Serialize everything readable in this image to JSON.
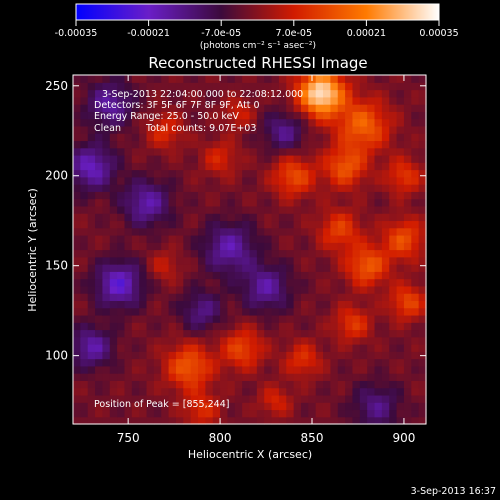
{
  "chart_data": {
    "type": "heatmap",
    "title": "Reconstructed RHESSI Image",
    "xlabel": "Heliocentric X (arcsec)",
    "ylabel": "Heliocentric Y (arcsec)",
    "xlim": [
      720,
      912
    ],
    "ylim": [
      62,
      256
    ],
    "x_ticks": [
      750,
      800,
      850,
      900
    ],
    "y_ticks": [
      100,
      150,
      200,
      250
    ],
    "colorbar": {
      "vmin": -0.00035,
      "vmax": 0.00035,
      "tick_values": [
        -0.00035,
        -0.00021,
        -7e-05,
        7e-05,
        0.00021,
        0.00035
      ],
      "tick_labels": [
        "-0.00035",
        "-0.00021",
        "-7.0e-05",
        "7.0e-05",
        "0.00021",
        "0.00035"
      ],
      "units_label": "(photons cm⁻² s⁻¹ asec⁻²)",
      "colors": [
        "#0000ff",
        "#6a1ec8",
        "#3c0a3c",
        "#d11b00",
        "#ff7a00",
        "#ffffff"
      ]
    },
    "annotations": [
      "3-Sep-2013 22:04:00.000 to 22:08:12.000",
      "Detectors: 3F 5F 6F 7F 8F 9F, Att 0",
      "Energy Range: 25.0 - 50.0 keV",
      "Clean",
      "Total counts: 9.07E+03",
      "Position of Peak = [855,244]"
    ],
    "peak": {
      "x": 855,
      "y": 244
    },
    "sources": [
      {
        "x": 855,
        "y": 246,
        "amp": 0.00035,
        "sigma": 9
      },
      {
        "x": 878,
        "y": 228,
        "amp": 0.00019,
        "sigma": 10
      },
      {
        "x": 840,
        "y": 200,
        "amp": 0.00016,
        "sigma": 8
      },
      {
        "x": 868,
        "y": 205,
        "amp": 0.00017,
        "sigma": 8
      },
      {
        "x": 900,
        "y": 200,
        "amp": 0.00013,
        "sigma": 7
      },
      {
        "x": 865,
        "y": 170,
        "amp": 0.00014,
        "sigma": 8
      },
      {
        "x": 900,
        "y": 165,
        "amp": 0.00016,
        "sigma": 8
      },
      {
        "x": 880,
        "y": 150,
        "amp": 0.00018,
        "sigma": 8
      },
      {
        "x": 902,
        "y": 130,
        "amp": 0.00015,
        "sigma": 7
      },
      {
        "x": 872,
        "y": 118,
        "amp": 0.00013,
        "sigma": 7
      },
      {
        "x": 783,
        "y": 94,
        "amp": 0.00018,
        "sigma": 9
      },
      {
        "x": 812,
        "y": 104,
        "amp": 0.00015,
        "sigma": 8
      },
      {
        "x": 845,
        "y": 98,
        "amp": 0.00012,
        "sigma": 7
      },
      {
        "x": 790,
        "y": 70,
        "amp": 0.00011,
        "sigma": 7
      },
      {
        "x": 830,
        "y": 75,
        "amp": 0.0001,
        "sigma": 6
      },
      {
        "x": 770,
        "y": 225,
        "amp": 0.00011,
        "sigma": 7
      },
      {
        "x": 800,
        "y": 210,
        "amp": 0.0001,
        "sigma": 7
      },
      {
        "x": 810,
        "y": 235,
        "amp": 9e-05,
        "sigma": 6
      },
      {
        "x": 770,
        "y": 150,
        "amp": 8e-05,
        "sigma": 6
      },
      {
        "x": 745,
        "y": 140,
        "amp": -0.0002,
        "sigma": 9
      },
      {
        "x": 730,
        "y": 205,
        "amp": -0.00018,
        "sigma": 9
      },
      {
        "x": 760,
        "y": 185,
        "amp": -0.00016,
        "sigma": 9
      },
      {
        "x": 805,
        "y": 160,
        "amp": -0.00016,
        "sigma": 10
      },
      {
        "x": 825,
        "y": 138,
        "amp": -0.00015,
        "sigma": 9
      },
      {
        "x": 730,
        "y": 105,
        "amp": -0.00016,
        "sigma": 8
      },
      {
        "x": 885,
        "y": 72,
        "amp": -0.00012,
        "sigma": 9
      },
      {
        "x": 835,
        "y": 225,
        "amp": -0.00013,
        "sigma": 8
      },
      {
        "x": 740,
        "y": 240,
        "amp": -0.00015,
        "sigma": 9
      },
      {
        "x": 790,
        "y": 125,
        "amp": -0.00012,
        "sigma": 8
      }
    ]
  },
  "footer_timestamp": "3-Sep-2013 16:37"
}
